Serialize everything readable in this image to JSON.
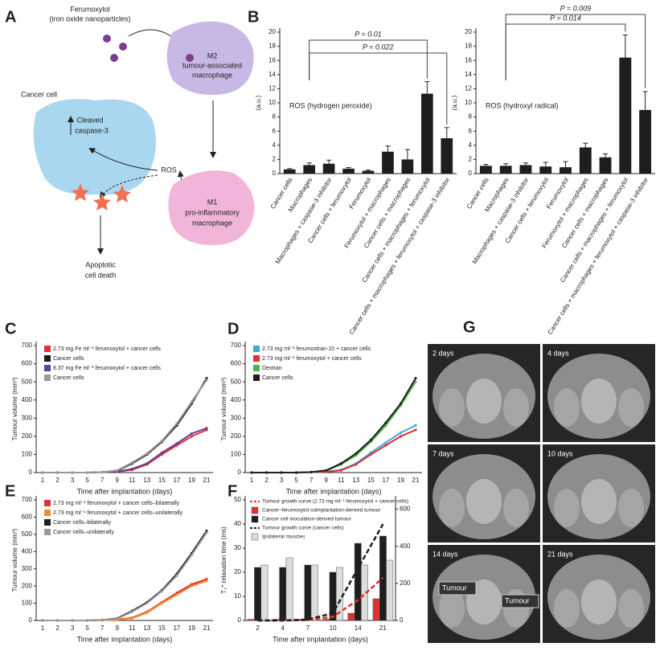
{
  "diagram": {
    "panel": "A",
    "ferumoxytol": "Ferumoxytol",
    "ferumoxytol_note": "(iron oxide nanoparticles)",
    "m2": [
      "M2",
      "tumour-associated",
      "macrophage"
    ],
    "cancer_cell": "Cancer cell",
    "caspase": [
      "Cleaved",
      "caspase-3"
    ],
    "ros": "ROS",
    "m1": [
      "M1",
      "pro-inflammatory",
      "macrophage"
    ],
    "outcome": [
      "Apoptotic",
      "cell death"
    ]
  },
  "chart_data": [
    {
      "panel": "B",
      "type": "bar",
      "ylabel": "(a.u.)",
      "annotation": "ROS (hydrogen peroxide)",
      "annotations": [
        "P = 0.01",
        "P = 0.022"
      ],
      "categories": [
        "Cancer cells",
        "Macrophages",
        "Macrophages + caspase-3 inhibitor",
        "Cancer cells + ferumoxytol",
        "Ferumoxytol",
        "Ferumoxytol + macrophages",
        "Cancer cells + macrophages",
        "Cancer cells + macrophages + ferumoxytol",
        "Cancer cells + macrophages + ferumoxytol + caspase-3 inhibitor"
      ],
      "values": [
        0.6,
        1.2,
        1.4,
        0.7,
        0.4,
        3.1,
        2.0,
        11.3,
        5.0
      ],
      "errors": [
        0.1,
        0.3,
        0.5,
        0.15,
        0.1,
        0.8,
        1.4,
        1.7,
        1.5
      ],
      "color": "#1e1e1e",
      "ylim": [
        0,
        20
      ],
      "yticks": [
        0,
        2,
        4,
        6,
        8,
        10,
        12,
        14,
        16,
        18,
        20
      ]
    },
    {
      "type": "bar",
      "ylabel": "(a.u.)",
      "annotation": "ROS (hydroxyl radical)",
      "annotations": [
        "P = 0.009",
        "P = 0.014"
      ],
      "categories": [
        "Cancer cells",
        "Macrophages",
        "Macrophages + caspase-3 inhibitor",
        "Cancer cells + ferumoxytol",
        "Ferumoxytol",
        "Ferumoxytol + macrophages",
        "Cancer cells + macrophages",
        "Cancer cells + macrophages + ferumoxytol",
        "Cancer cells + macrophages + ferumoxytol + caspase-3 inhibitor"
      ],
      "values": [
        1.1,
        1.1,
        1.2,
        1.0,
        0.9,
        3.7,
        2.3,
        16.4,
        9.0
      ],
      "errors": [
        0.2,
        0.3,
        0.3,
        0.6,
        0.8,
        0.6,
        0.5,
        3.2,
        2.6
      ],
      "color": "#1e1e1e",
      "ylim": [
        0,
        20
      ],
      "yticks": [
        0,
        2,
        4,
        6,
        8,
        10,
        12,
        14,
        16,
        18,
        20
      ]
    },
    {
      "panel": "C",
      "type": "line",
      "xlabel": "Time after implantation (days)",
      "ylabel": "Tumour volume (mm³)",
      "categories": [
        "1",
        "2",
        "3",
        "5",
        "7",
        "9",
        "11",
        "13",
        "15",
        "17",
        "19",
        "21"
      ],
      "ylim": [
        0,
        700
      ],
      "yticks": [
        0,
        100,
        200,
        300,
        400,
        500,
        600,
        700
      ],
      "series": [
        {
          "name": "2.73 mg Fe ml⁻¹ ferumoxytol + cancer cells",
          "color": "#e03030",
          "values": [
            0,
            0,
            0,
            0,
            2,
            5,
            15,
            45,
            100,
            150,
            200,
            235
          ]
        },
        {
          "name": "Cancer cells",
          "color": "#1e1e1e",
          "values": [
            0,
            0,
            0,
            0,
            3,
            10,
            50,
            100,
            170,
            260,
            380,
            520
          ]
        },
        {
          "name": "8.37 mg Fe ml⁻¹ ferumoxytol + cancer cells",
          "color": "#6a3d9a",
          "values": [
            0,
            0,
            0,
            0,
            2,
            5,
            20,
            50,
            110,
            160,
            215,
            245
          ]
        },
        {
          "name": "Cancer cells",
          "color": "#999999",
          "values": [
            0,
            0,
            0,
            0,
            3,
            12,
            55,
            105,
            175,
            270,
            390,
            510
          ]
        }
      ]
    },
    {
      "panel": "D",
      "type": "line",
      "xlabel": "Time after implantation (days)",
      "ylabel": "Tumour volume (mm³)",
      "categories": [
        "1",
        "2",
        "3",
        "5",
        "7",
        "9",
        "11",
        "13",
        "15",
        "17",
        "19",
        "21"
      ],
      "ylim": [
        0,
        700
      ],
      "yticks": [
        0,
        100,
        200,
        300,
        400,
        500,
        600,
        700
      ],
      "series": [
        {
          "name": "2.73 mg ml⁻¹ ferumoxtran-10 + cancer cells",
          "color": "#3fa9e0",
          "values": [
            0,
            0,
            0,
            0,
            2,
            5,
            15,
            50,
            110,
            165,
            220,
            260
          ]
        },
        {
          "name": "2.73 mg ml⁻¹ ferumoxytol + cancer cells",
          "color": "#e03030",
          "values": [
            0,
            0,
            0,
            0,
            2,
            4,
            12,
            45,
            100,
            150,
            200,
            235
          ]
        },
        {
          "name": "Dextran",
          "color": "#4db848",
          "values": [
            0,
            0,
            0,
            0,
            3,
            10,
            45,
            95,
            170,
            260,
            370,
            500
          ]
        },
        {
          "name": "Cancer cells",
          "color": "#1e1e1e",
          "values": [
            0,
            0,
            0,
            0,
            3,
            12,
            50,
            105,
            180,
            275,
            380,
            520
          ]
        }
      ]
    },
    {
      "panel": "E",
      "type": "line",
      "xlabel": "Time after implantation (days)",
      "ylabel": "Tumour volume (mm³)",
      "categories": [
        "1",
        "2",
        "3",
        "5",
        "7",
        "9",
        "11",
        "13",
        "15",
        "17",
        "19",
        "21"
      ],
      "ylim": [
        0,
        700
      ],
      "yticks": [
        0,
        100,
        200,
        300,
        400,
        500,
        600,
        700
      ],
      "series": [
        {
          "name": "2.73 mg ml⁻¹ ferumoxytol + cancer cells–bilaterally",
          "color": "#e03030",
          "values": [
            0,
            0,
            0,
            0,
            2,
            5,
            15,
            50,
            105,
            160,
            210,
            240
          ]
        },
        {
          "name": "2.73 mg ml⁻¹ ferumoxytol + cancer cells–unilaterally",
          "color": "#f08c30",
          "values": [
            0,
            0,
            0,
            0,
            2,
            4,
            12,
            45,
            100,
            150,
            200,
            230
          ]
        },
        {
          "name": "Cancer cells–bilaterally",
          "color": "#1e1e1e",
          "values": [
            0,
            0,
            0,
            0,
            3,
            12,
            55,
            105,
            175,
            270,
            390,
            520
          ]
        },
        {
          "name": "Cancer cells–unilaterally",
          "color": "#999999",
          "values": [
            0,
            0,
            0,
            0,
            3,
            10,
            50,
            100,
            170,
            260,
            380,
            510
          ]
        }
      ]
    },
    {
      "panel": "F",
      "type": "combo",
      "xlabel": "Time after implantation (days)",
      "ylabel": "T₂* relaxation time (ms)",
      "categories": [
        "2",
        "4",
        "7",
        "10",
        "14",
        "21"
      ],
      "ylim": [
        0,
        50
      ],
      "yticks": [
        0,
        10,
        20,
        30,
        40,
        50
      ],
      "y2lim": [
        0,
        650
      ],
      "y2ticks": [
        0,
        200,
        400,
        600
      ],
      "series": [
        {
          "name": "Tumour growth curve (2.73 mg ml⁻¹ ferumoxytol + cancer cells)",
          "kind": "line",
          "axis": "y2",
          "dashed": true,
          "color": "#e03030",
          "values": [
            0,
            0,
            2,
            20,
            110,
            230
          ]
        },
        {
          "name": "Cancer–ferumoxytol coimplantation-derived tumour",
          "kind": "bar",
          "color": "#e03030",
          "values": [
            0.5,
            0.5,
            0.5,
            0.5,
            3,
            9
          ]
        },
        {
          "name": "Cancer cell inoculation-derived tumour",
          "kind": "bar",
          "color": "#1e1e1e",
          "values": [
            22,
            22,
            23,
            20,
            32,
            35
          ]
        },
        {
          "name": "Tumour growth curve (cancer cells)",
          "kind": "line",
          "axis": "y2",
          "dashed": true,
          "color": "#1e1e1e",
          "values": [
            0,
            0,
            5,
            40,
            280,
            520
          ]
        },
        {
          "name": "Ipsilateral muscles",
          "kind": "bar",
          "color": "#dddddd",
          "values": [
            23,
            26,
            23,
            22,
            23,
            25
          ]
        }
      ]
    }
  ],
  "panel_g": {
    "panel": "G",
    "images": [
      "2 days",
      "4 days",
      "7 days",
      "10 days",
      "14 days",
      "21 days"
    ],
    "callouts": [
      "Tumour",
      "Tumour"
    ]
  }
}
